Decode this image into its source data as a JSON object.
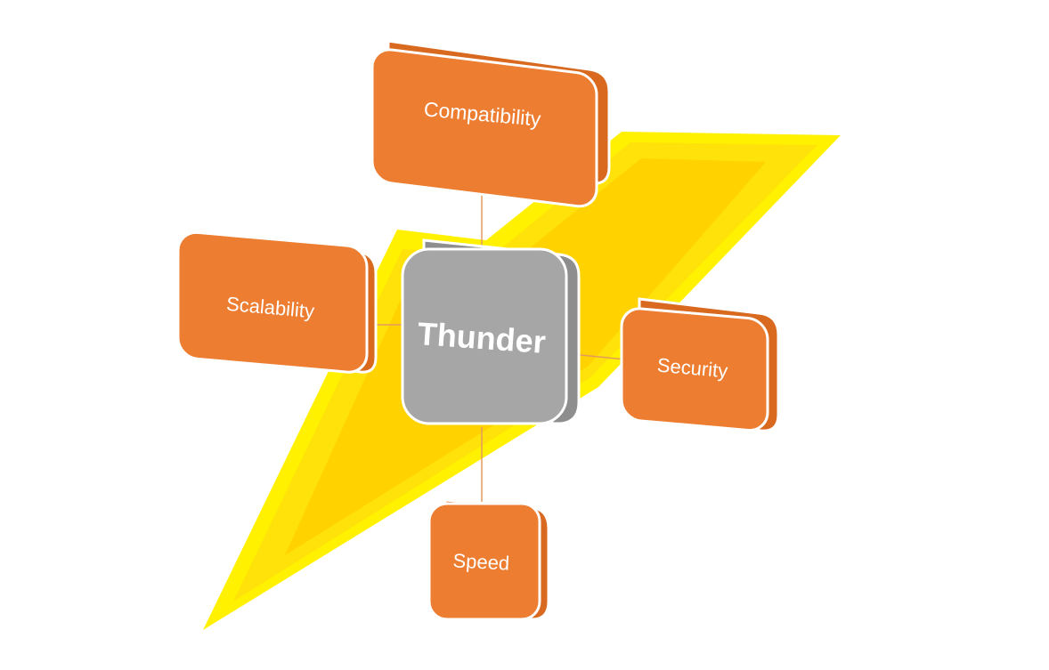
{
  "diagram": {
    "center": {
      "label": "Thunder"
    },
    "nodes": [
      {
        "id": "compatibility",
        "label": "Compatibility"
      },
      {
        "id": "scalability",
        "label": "Scalability"
      },
      {
        "id": "security",
        "label": "Security"
      },
      {
        "id": "speed",
        "label": "Speed"
      }
    ]
  },
  "colors": {
    "bolt_outer": "#FFF100",
    "bolt_mid": "#FFE20A",
    "bolt_inner": "#FFD200",
    "node_fill": "#ED7D31",
    "node_side": "#D9691E",
    "node_border": "#FFFFFF",
    "center_fill": "#A6A6A6",
    "center_side": "#8E8E8E",
    "connector": "#E59A5E"
  }
}
